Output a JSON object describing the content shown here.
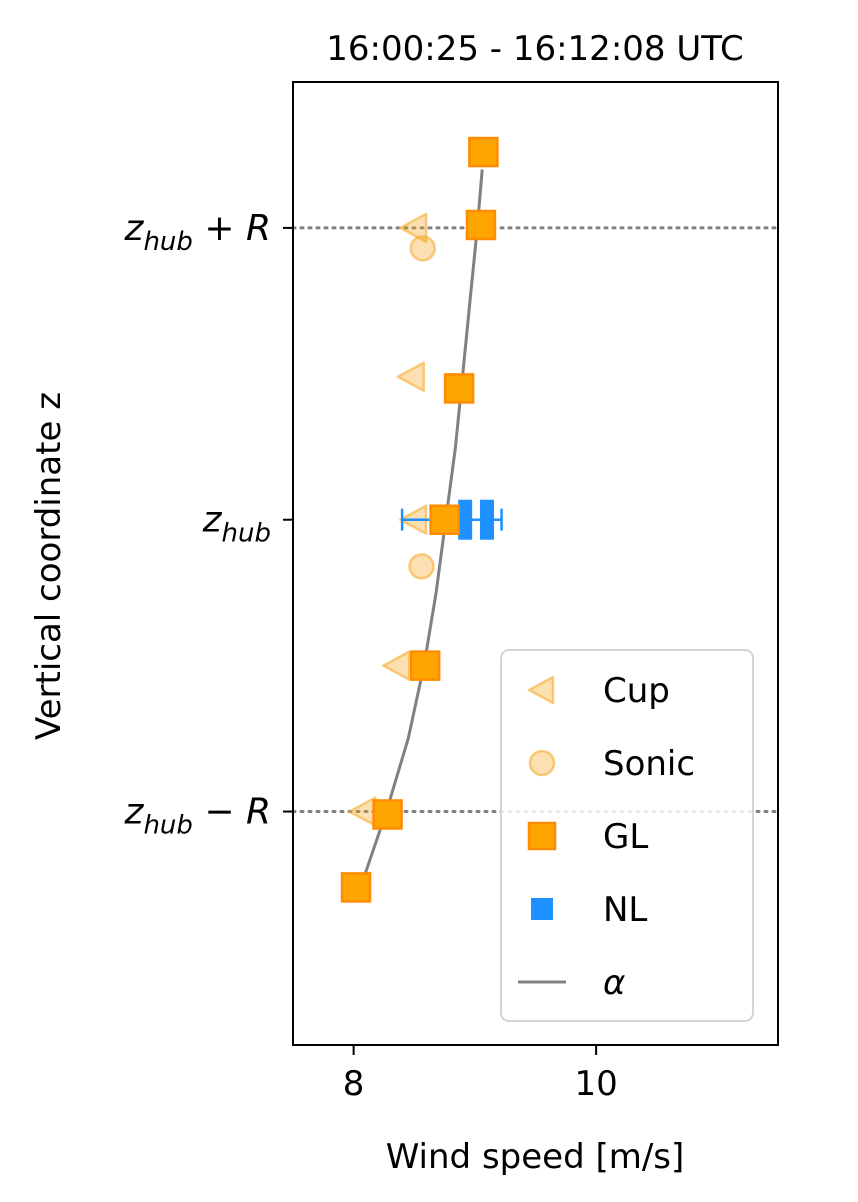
{
  "chart_data": {
    "type": "scatter",
    "title": "16:00:25 - 16:12:08 UTC",
    "xlabel": "Wind speed [m/s]",
    "ylabel": "Vertical coordinate z",
    "xlim": [
      7.5,
      11.5
    ],
    "ylim": [
      -1.8,
      1.5
    ],
    "xticks": [
      8,
      10
    ],
    "yticks": [
      {
        "value": 1,
        "base": "z",
        "sub": "hub",
        "op": "+",
        "term": "R"
      },
      {
        "value": 0,
        "base": "z",
        "sub": "hub",
        "op": "",
        "term": ""
      },
      {
        "value": -1,
        "base": "z",
        "sub": "hub",
        "op": "−",
        "term": "R"
      }
    ],
    "reference_lines": [
      1,
      -1
    ],
    "legend_position": "lower-right",
    "legend": [
      {
        "key": "cup",
        "label": "Cup"
      },
      {
        "key": "sonic",
        "label": "Sonic"
      },
      {
        "key": "gl",
        "label": "GL"
      },
      {
        "key": "nl",
        "label": "NL"
      },
      {
        "key": "alpha",
        "label": "α"
      }
    ],
    "colors": {
      "cup": "#f5a623",
      "sonic": "#f5a623",
      "gl": "#ffa500",
      "gl_edge": "#ff8c00",
      "nl": "#1e90ff",
      "alpha": "#808080",
      "ref": "#808080"
    },
    "series": {
      "cup": [
        {
          "x": 8.5,
          "y": 1.0
        },
        {
          "x": 8.48,
          "y": 0.49
        },
        {
          "x": 8.5,
          "y": 0.0
        },
        {
          "x": 8.36,
          "y": -0.5
        },
        {
          "x": 8.08,
          "y": -1.0
        }
      ],
      "sonic": [
        {
          "x": 8.57,
          "y": 0.93
        },
        {
          "x": 8.56,
          "y": -0.16
        }
      ],
      "gl": [
        {
          "x": 9.07,
          "y": 1.26
        },
        {
          "x": 9.05,
          "y": 1.01
        },
        {
          "x": 8.87,
          "y": 0.45
        },
        {
          "x": 8.75,
          "y": 0.0
        },
        {
          "x": 8.59,
          "y": -0.5
        },
        {
          "x": 8.28,
          "y": -1.01
        },
        {
          "x": 8.02,
          "y": -1.26
        }
      ],
      "nl": [
        {
          "x": 8.92,
          "y": 0.0
        },
        {
          "x": 9.1,
          "y": 0.0
        }
      ],
      "nl_errorbar": {
        "y": 0.0,
        "xmin": 8.4,
        "xmax": 9.22
      },
      "alpha_curve": [
        {
          "x": 8.09,
          "y": -1.22
        },
        {
          "x": 8.27,
          "y": -1.0
        },
        {
          "x": 8.45,
          "y": -0.75
        },
        {
          "x": 8.58,
          "y": -0.5
        },
        {
          "x": 8.68,
          "y": -0.25
        },
        {
          "x": 8.76,
          "y": 0.0
        },
        {
          "x": 8.84,
          "y": 0.25
        },
        {
          "x": 8.9,
          "y": 0.5
        },
        {
          "x": 8.96,
          "y": 0.75
        },
        {
          "x": 9.02,
          "y": 1.0
        },
        {
          "x": 9.06,
          "y": 1.2
        }
      ]
    }
  }
}
